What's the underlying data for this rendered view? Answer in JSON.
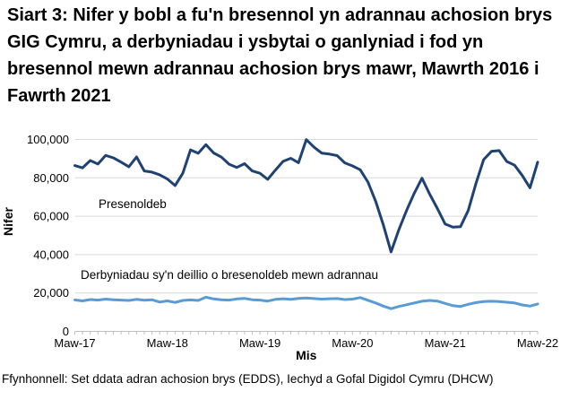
{
  "title": "Siart 3: Nifer y bobl a fu'n bresennol yn adrannau achosion brys GIG Cymru, a derbyniadau i ysbytai o ganlyniad i fod yn bresennol mewn adrannau achosion brys mawr, Mawrth 2016 i Fawrth 2021",
  "source": "Ffynhonnell: Set ddata adran achosion brys (EDDS), Iechyd a Gofal Digidol Cymru (DHCW)",
  "colors": {
    "attendance_line": "#1F4273",
    "admissions_line": "#5B9BD5",
    "gridline": "#D9D9D9",
    "axis": "#BFBFBF",
    "text": "#000000"
  },
  "chart_data": {
    "type": "line",
    "title": "",
    "xlabel": "Mis",
    "ylabel": "Nifer",
    "ylim": [
      0,
      100000
    ],
    "ytick_interval": 20000,
    "ytick_labels": [
      "0",
      "20,000",
      "40,000",
      "60,000",
      "80,000",
      "100,000"
    ],
    "xtick_labels": [
      "Maw-17",
      "Maw-18",
      "Maw-19",
      "Maw-20",
      "Maw-21",
      "Maw-22"
    ],
    "xtick_month_index": [
      0,
      12,
      24,
      36,
      48,
      60
    ],
    "months_total": 61,
    "grid": true,
    "legend_position": "inline-labels-on-plot",
    "series": [
      {
        "name": "Presenoldeb",
        "color": "#1F4273",
        "values": [
          86400,
          85200,
          89000,
          87200,
          91700,
          90400,
          88200,
          85800,
          90900,
          83600,
          83000,
          81600,
          79400,
          76000,
          82400,
          94600,
          92800,
          97300,
          93000,
          90800,
          87100,
          85400,
          87400,
          83600,
          82400,
          79200,
          84000,
          88600,
          90200,
          87900,
          99900,
          96000,
          92900,
          92400,
          91600,
          87800,
          86200,
          84200,
          77800,
          67800,
          55400,
          41400,
          53000,
          63000,
          72000,
          79800,
          71500,
          64000,
          56000,
          54300,
          54600,
          63000,
          77000,
          89500,
          93800,
          94200,
          88500,
          86600,
          81200,
          74800,
          88200
        ]
      },
      {
        "name": "Derbyniadau sy'n deillio o bresenoldeb mewn adrannau",
        "color": "#5B9BD5",
        "values": [
          16400,
          15900,
          16600,
          16300,
          16800,
          16500,
          16300,
          16100,
          16700,
          16200,
          16500,
          15300,
          15900,
          15100,
          16100,
          16400,
          16100,
          17800,
          16900,
          16500,
          16300,
          16900,
          17200,
          16500,
          16300,
          15800,
          16700,
          17000,
          16700,
          17200,
          17400,
          17100,
          16800,
          17000,
          17100,
          16600,
          16800,
          17600,
          16200,
          14800,
          13200,
          11800,
          13000,
          13900,
          14800,
          15700,
          16100,
          15800,
          14600,
          13400,
          13000,
          14100,
          15000,
          15500,
          15700,
          15500,
          15200,
          14800,
          13800,
          13200,
          14300
        ]
      }
    ],
    "annotations": [
      {
        "text": "Presenoldeb"
      },
      {
        "text": "Derbyniadau sy'n deillio o bresenoldeb mewn adrannau"
      }
    ]
  }
}
